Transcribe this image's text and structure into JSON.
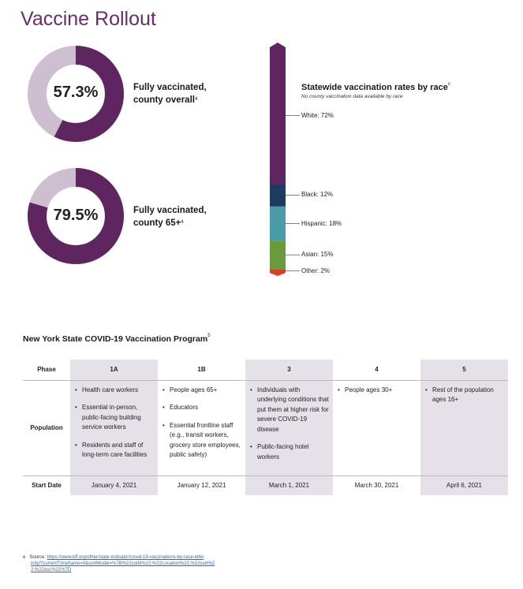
{
  "page_title": "Vaccine Rollout",
  "donuts": [
    {
      "value_text": "57.3%",
      "fraction": 0.573,
      "caption_line1": "Fully vaccinated,",
      "caption_line2": "county overall",
      "footnote_mark": "4"
    },
    {
      "value_text": "79.5%",
      "fraction": 0.795,
      "caption_line1": "Fully vaccinated,",
      "caption_line2": "county 65+",
      "footnote_mark": "4"
    }
  ],
  "colors": {
    "brand_purple": "#5e2560",
    "donut_track": "#cdbfd0",
    "white": "#2c6a8a",
    "accent": "#6b2c6e"
  },
  "race_chart": {
    "title": "Statewide vaccination rates by race",
    "footnote_mark": "c",
    "subtitle": "No county vaccination data available by race",
    "segments": [
      {
        "label": "White: 72%",
        "value": 72,
        "color": "#5e2560"
      },
      {
        "label": "Black: 12%",
        "value": 12,
        "color": "#1e3a5f"
      },
      {
        "label": "Hispanic: 18%",
        "value": 18,
        "color": "#4a9aa8"
      },
      {
        "label": "Asian: 15%",
        "value": 15,
        "color": "#6a9a3a"
      },
      {
        "label": "Other: 2%",
        "value": 2,
        "color": "#e03a2a"
      }
    ]
  },
  "program": {
    "title": "New York State COVID-19 Vaccination Program",
    "footnote_mark": "5",
    "row_labels": {
      "phase": "Phase",
      "population": "Population",
      "start_date": "Start Date"
    },
    "phases": [
      {
        "name": "1A",
        "population": [
          "Health care workers",
          "Essential in-person, public-facing building service workers",
          "Residents and staff of long-term care facilities"
        ],
        "start": "January 4, 2021"
      },
      {
        "name": "1B",
        "population": [
          "People ages 65+",
          "Educators",
          "Essential frontline staff (e.g., transit workers, grocery store employees, public safety)"
        ],
        "start": "January 12, 2021"
      },
      {
        "name": "3",
        "population": [
          "Individuals with underlying conditions that put them at higher risk for severe COVID-19 disease",
          "Public-facing hotel workers"
        ],
        "start": "March 1, 2021"
      },
      {
        "name": "4",
        "population": [
          "People ages 30+"
        ],
        "start": "March 30, 2021"
      },
      {
        "name": "5",
        "population": [
          "Rest of the population ages 16+"
        ],
        "start": "April 6, 2021"
      }
    ]
  },
  "footnote": {
    "mark": "e",
    "prefix": "Source: ",
    "link_line1": "https://www.kff.org/other/state-indicator/covid-19-vaccinations-by-race-ethn",
    "link_line2": "icity/?currentTimeframe=0&sortModel=%7B%22colId%22:%22Location%22,%22sort%2",
    "link_line3": "2:%22asc%22%7D"
  }
}
